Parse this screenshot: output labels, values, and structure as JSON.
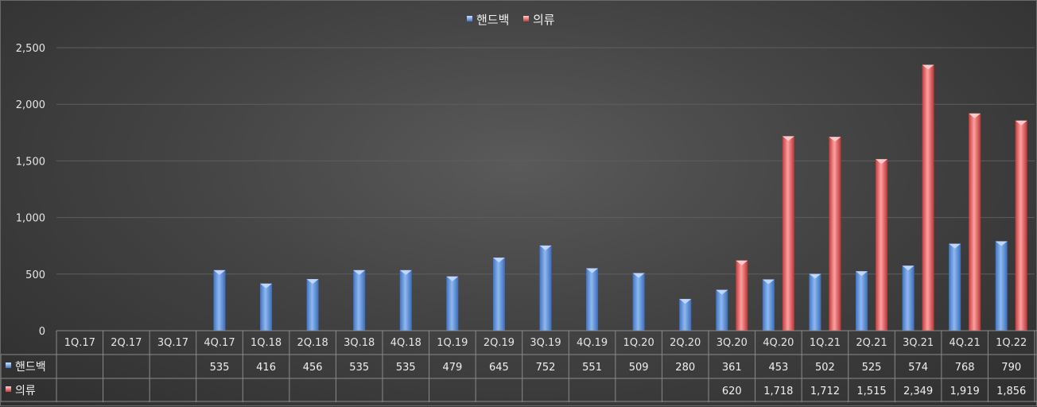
{
  "chart_data": {
    "type": "bar",
    "categories": [
      "1Q.17",
      "2Q.17",
      "3Q.17",
      "4Q.17",
      "1Q.18",
      "2Q.18",
      "3Q.18",
      "4Q.18",
      "1Q.19",
      "2Q.19",
      "3Q.19",
      "4Q.19",
      "1Q.20",
      "2Q.20",
      "3Q.20",
      "4Q.20",
      "1Q.21",
      "2Q.21",
      "3Q.21",
      "4Q.21",
      "1Q.22"
    ],
    "series": [
      {
        "name": "핸드백",
        "color": "#5b8fd9",
        "values": [
          null,
          null,
          null,
          535,
          416,
          456,
          535,
          535,
          479,
          645,
          752,
          551,
          509,
          280,
          361,
          453,
          502,
          525,
          574,
          768,
          790
        ],
        "labels": [
          "",
          "",
          "",
          "535",
          "416",
          "456",
          "535",
          "535",
          "479",
          "645",
          "752",
          "551",
          "509",
          "280",
          "361",
          "453",
          "502",
          "525",
          "574",
          "768",
          "790"
        ]
      },
      {
        "name": "의류",
        "color": "#d94a4a",
        "values": [
          null,
          null,
          null,
          null,
          null,
          null,
          null,
          null,
          null,
          null,
          null,
          null,
          null,
          null,
          620,
          1718,
          1712,
          1515,
          2349,
          1919,
          1856
        ],
        "labels": [
          "",
          "",
          "",
          "",
          "",
          "",
          "",
          "",
          "",
          "",
          "",
          "",
          "",
          "",
          "620",
          "1,718",
          "1,712",
          "1,515",
          "2,349",
          "1,919",
          "1,856"
        ]
      }
    ],
    "ylim": [
      0,
      2500
    ],
    "yticks": [
      0,
      500,
      1000,
      1500,
      2000,
      2500
    ],
    "ytick_labels": [
      "0",
      "500",
      "1,000",
      "1,500",
      "2,000",
      "2,500"
    ],
    "legend_position": "top-center",
    "grid": true,
    "data_table": true
  }
}
